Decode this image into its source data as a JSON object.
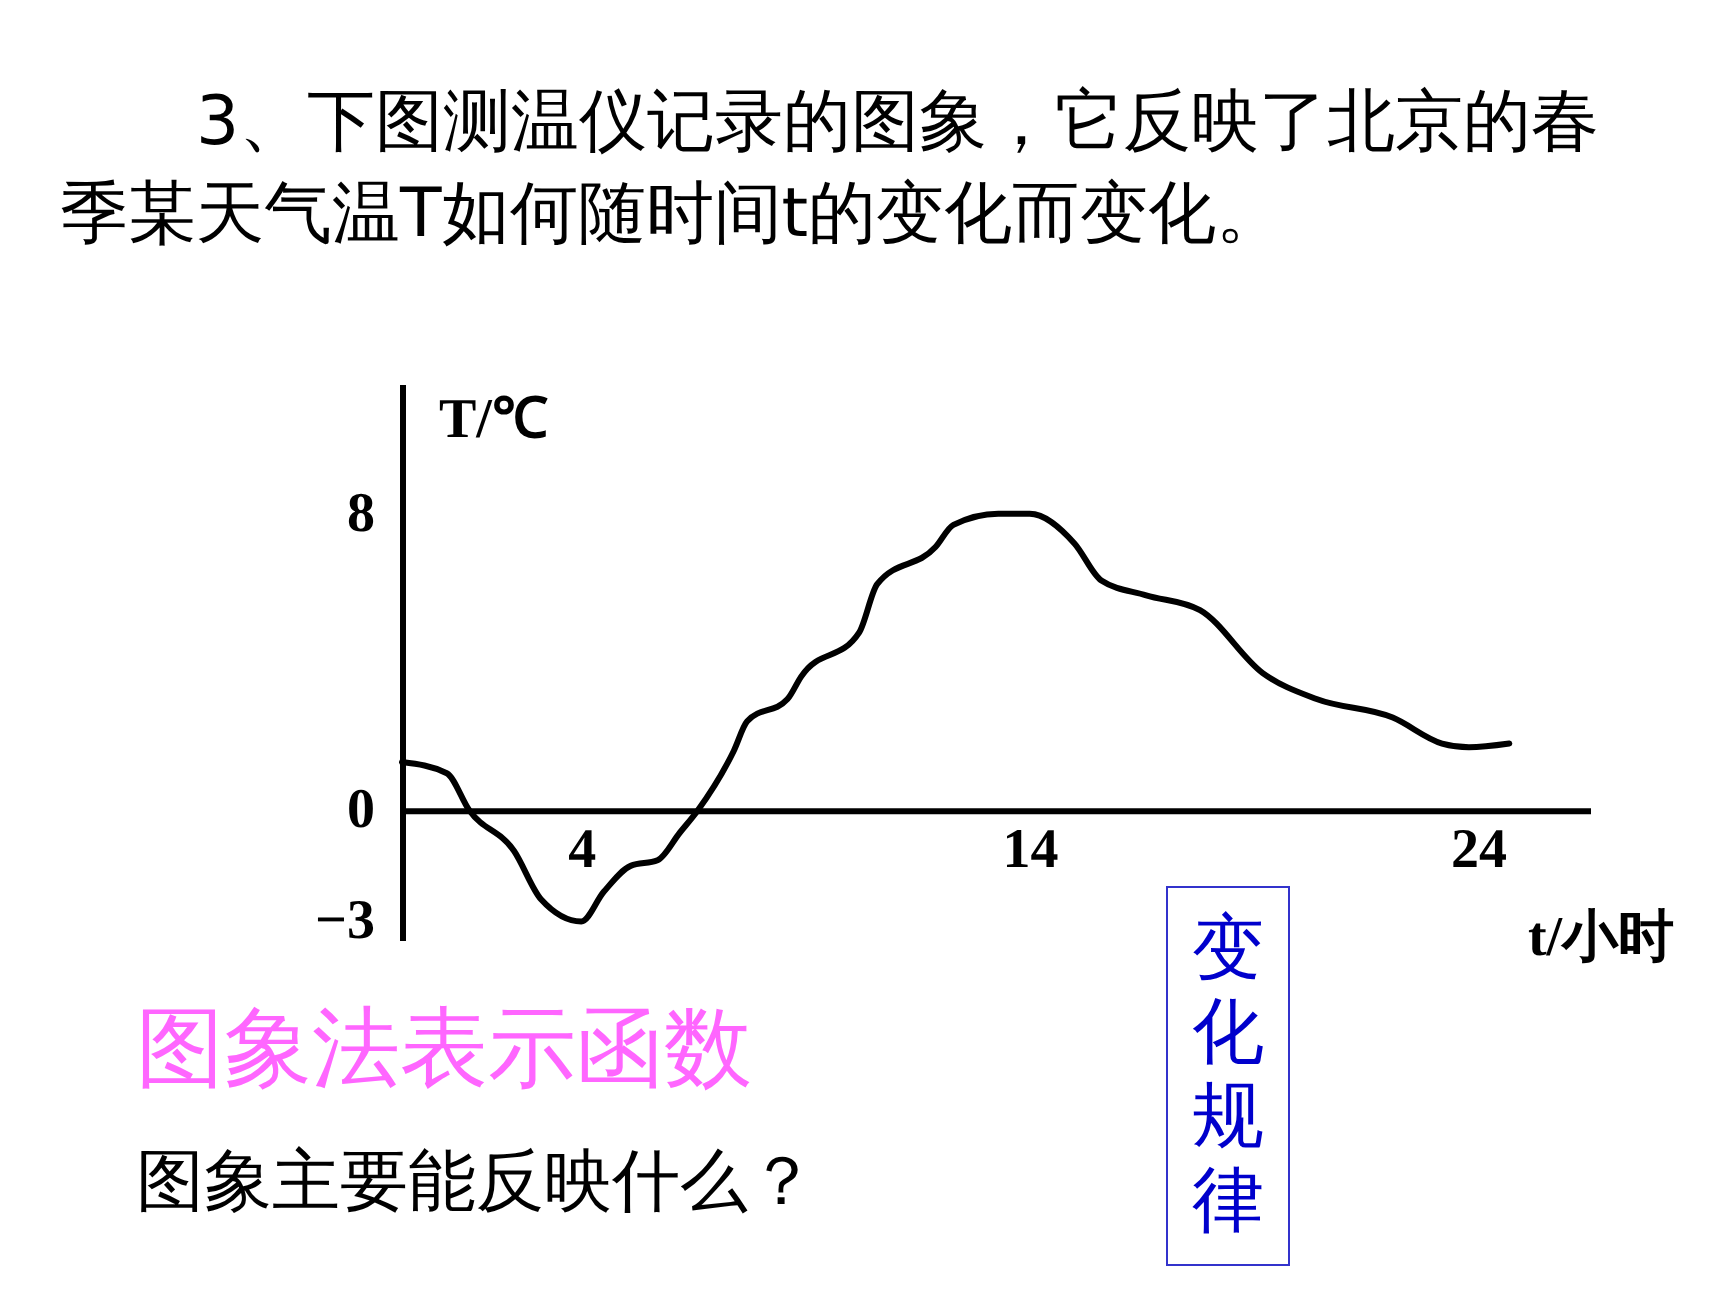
{
  "chart_data": {
    "type": "line",
    "title": "3、下图测温仪记录的图象，它反映了北京的春季某天气温T如何随时间t的变化而变化。",
    "xlabel": "t/小时",
    "ylabel": "T/℃",
    "annotations": [
      "图象法表示函数",
      "图象主要能反映什么？",
      "变化规律"
    ],
    "x": [
      0,
      1,
      1.5,
      2.5,
      3.1,
      4,
      4.5,
      5.1,
      5.7,
      6.2,
      6.6,
      7.4,
      7.7,
      8.6,
      8.9,
      10.2,
      10.6,
      11.9,
      12.3,
      13.3,
      14,
      15,
      15.6,
      16.6,
      17.8,
      19.2,
      20.4,
      22.1,
      23.2,
      23.8,
      24.7
    ],
    "series": [
      {
        "color": "#000000",
        "values": [
          1.3,
          1.0,
          0,
          -1.1,
          -2.4,
          -3,
          -2.2,
          -1.5,
          -1.35,
          -0.6,
          0,
          1.6,
          2.4,
          3.0,
          3.6,
          4.8,
          6.1,
          7.1,
          7.7,
          8.0,
          8,
          7.2,
          6.2,
          5.8,
          5.4,
          3.7,
          3.0,
          2.5,
          1.8,
          1.7,
          1.8
        ]
      }
    ],
    "xlim": [
      0,
      26.5
    ],
    "ylim": [
      -3.5,
      11.5
    ],
    "xticks": [
      4,
      14,
      24
    ],
    "yticks": [
      -3,
      0,
      8
    ],
    "grid": false,
    "marker": "none",
    "line_style": "solid"
  }
}
